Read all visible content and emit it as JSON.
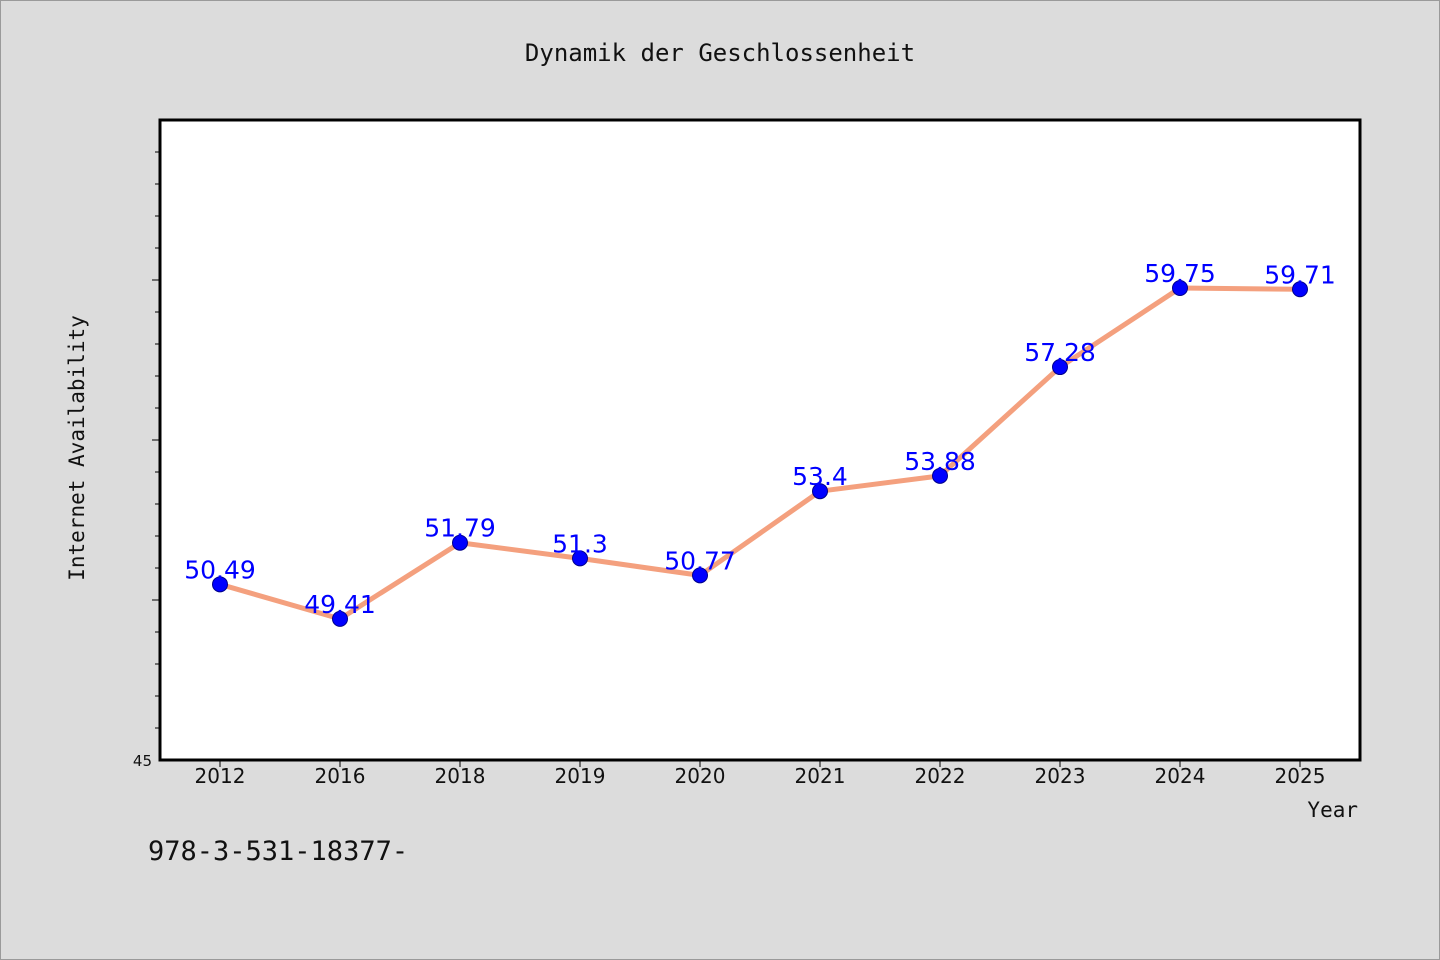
{
  "chart_data": {
    "type": "line",
    "title": "Dynamik der Geschlossenheit",
    "xlabel": "Year",
    "ylabel": "Internet Availability",
    "categories": [
      "2012",
      "2016",
      "2018",
      "2019",
      "2020",
      "2021",
      "2022",
      "2023",
      "2024",
      "2025"
    ],
    "series": [
      {
        "values": [
          50.49,
          49.41,
          51.79,
          51.3,
          50.77,
          53.4,
          53.88,
          57.28,
          59.75,
          59.71
        ]
      }
    ],
    "data_labels": [
      "50.49",
      "49.41",
      "51.79",
      "51.3",
      "50.77",
      "53.4",
      "53.88",
      "57.28",
      "59.75",
      "59.71"
    ],
    "ylim": [
      45,
      65
    ],
    "y_tick_labels": [
      "45"
    ],
    "grid": false,
    "legend": "none",
    "colors": {
      "line": "#f4a07e",
      "marker": "#0000ff",
      "label": "#0000ff",
      "background": "#dcdcdc",
      "plot_background": "#ffffff"
    }
  },
  "footer": {
    "text": "978-3-531-18377-"
  }
}
